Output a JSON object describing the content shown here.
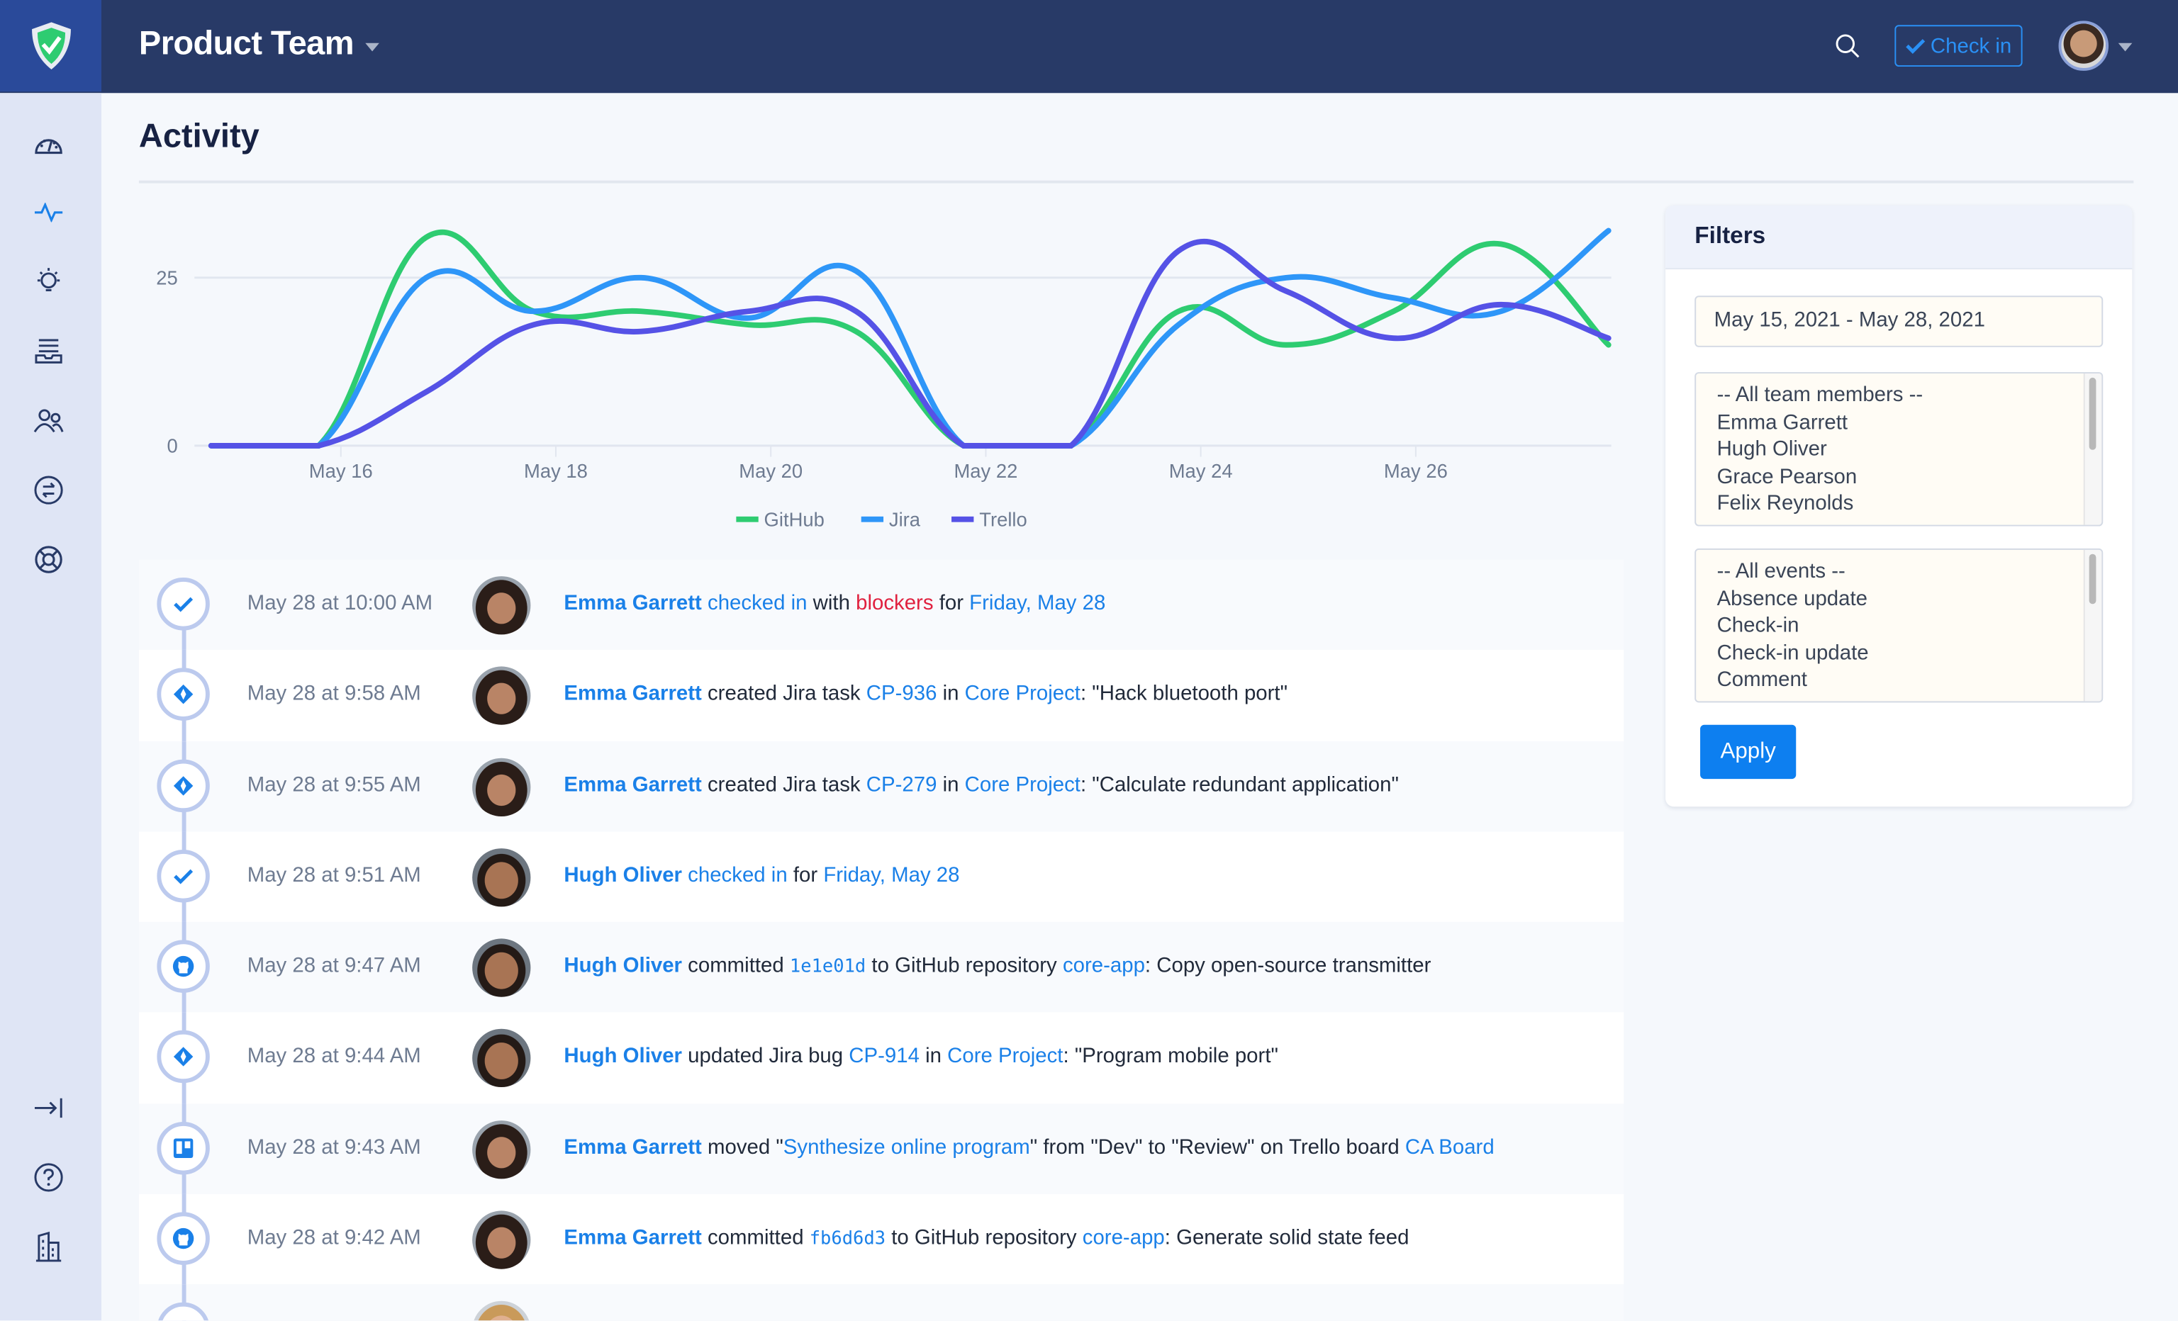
{
  "header": {
    "team_name": "Product Team",
    "check_in_label": "Check in",
    "icons": [
      "shield-check-icon",
      "search-icon",
      "check-icon",
      "user-avatar",
      "chevron-down-icon"
    ]
  },
  "sidebar": {
    "items": [
      {
        "icon": "dashboard-gauge-icon"
      },
      {
        "icon": "activity-pulse-icon",
        "active": true
      },
      {
        "icon": "lightbulb-icon"
      },
      {
        "icon": "inbox-tray-icon"
      },
      {
        "icon": "users-icon"
      },
      {
        "icon": "exchange-arrows-icon"
      },
      {
        "icon": "lifebuoy-icon"
      }
    ],
    "bottom_items": [
      {
        "icon": "collapse-arrow-icon"
      },
      {
        "icon": "help-circle-icon"
      },
      {
        "icon": "building-icon"
      }
    ]
  },
  "page": {
    "title": "Activity"
  },
  "chart_data": {
    "type": "line",
    "x": [
      "May 15",
      "May 16",
      "May 17",
      "May 18",
      "May 19",
      "May 20",
      "May 21",
      "May 22",
      "May 23",
      "May 24",
      "May 25",
      "May 26",
      "May 27",
      "May 28"
    ],
    "tick_labels": [
      "May 16",
      "May 18",
      "May 20",
      "May 22",
      "May 24",
      "May 26"
    ],
    "y_ticks": [
      0,
      25
    ],
    "ylim": [
      0,
      33
    ],
    "grid": true,
    "legend_position": "bottom",
    "series": [
      {
        "name": "GitHub",
        "color": "#2ecc71",
        "values": [
          0,
          0,
          31,
          20,
          20,
          18,
          17,
          0,
          0,
          20,
          15,
          20,
          30,
          15
        ]
      },
      {
        "name": "Jira",
        "color": "#2e96f8",
        "values": [
          0,
          0,
          25,
          20,
          25,
          19,
          26,
          0,
          0,
          18,
          25,
          22,
          20,
          32
        ]
      },
      {
        "name": "Trello",
        "color": "#5552e6",
        "values": [
          0,
          0,
          8,
          18,
          17,
          20,
          20,
          0,
          0,
          29,
          23,
          16,
          21,
          16
        ]
      }
    ]
  },
  "feed": [
    {
      "type": "check-in",
      "icon": "check-icon",
      "time": "May 28 at 10:00 AM",
      "avatar": "emma",
      "segments": [
        {
          "t": "Emma Garrett",
          "s": "user"
        },
        {
          "t": " ",
          "s": "plain"
        },
        {
          "t": "checked in",
          "s": "link"
        },
        {
          "t": " with ",
          "s": "plain"
        },
        {
          "t": "blockers",
          "s": "danger"
        },
        {
          "t": " for ",
          "s": "plain"
        },
        {
          "t": "Friday, May 28",
          "s": "link"
        }
      ]
    },
    {
      "type": "jira",
      "icon": "jira-icon",
      "time": "May 28 at 9:58 AM",
      "avatar": "emma",
      "segments": [
        {
          "t": "Emma Garrett",
          "s": "user"
        },
        {
          "t": " created Jira task ",
          "s": "plain"
        },
        {
          "t": "CP-936",
          "s": "link"
        },
        {
          "t": " in ",
          "s": "plain"
        },
        {
          "t": "Core Project",
          "s": "link"
        },
        {
          "t": ": \"Hack bluetooth port\"",
          "s": "plain"
        }
      ]
    },
    {
      "type": "jira",
      "icon": "jira-icon",
      "time": "May 28 at 9:55 AM",
      "avatar": "emma",
      "segments": [
        {
          "t": "Emma Garrett",
          "s": "user"
        },
        {
          "t": " created Jira task ",
          "s": "plain"
        },
        {
          "t": "CP-279",
          "s": "link"
        },
        {
          "t": " in ",
          "s": "plain"
        },
        {
          "t": "Core Project",
          "s": "link"
        },
        {
          "t": ": \"Calculate redundant application\"",
          "s": "plain"
        }
      ]
    },
    {
      "type": "check-in",
      "icon": "check-icon",
      "time": "May 28 at 9:51 AM",
      "avatar": "hugh",
      "segments": [
        {
          "t": "Hugh Oliver",
          "s": "user"
        },
        {
          "t": " ",
          "s": "plain"
        },
        {
          "t": "checked in",
          "s": "link"
        },
        {
          "t": " for ",
          "s": "plain"
        },
        {
          "t": "Friday, May 28",
          "s": "link"
        }
      ]
    },
    {
      "type": "github",
      "icon": "github-icon",
      "time": "May 28 at 9:47 AM",
      "avatar": "hugh",
      "segments": [
        {
          "t": "Hugh Oliver",
          "s": "user"
        },
        {
          "t": " committed ",
          "s": "plain"
        },
        {
          "t": "1e1e01d",
          "s": "code"
        },
        {
          "t": " to GitHub repository ",
          "s": "plain"
        },
        {
          "t": "core-app",
          "s": "link"
        },
        {
          "t": ": Copy open-source transmitter",
          "s": "plain"
        }
      ]
    },
    {
      "type": "jira",
      "icon": "jira-icon",
      "time": "May 28 at 9:44 AM",
      "avatar": "hugh",
      "segments": [
        {
          "t": "Hugh Oliver",
          "s": "user"
        },
        {
          "t": " updated Jira bug ",
          "s": "plain"
        },
        {
          "t": "CP-914",
          "s": "link"
        },
        {
          "t": " in ",
          "s": "plain"
        },
        {
          "t": "Core Project",
          "s": "link"
        },
        {
          "t": ": \"Program mobile port\"",
          "s": "plain"
        }
      ]
    },
    {
      "type": "trello",
      "icon": "trello-icon",
      "time": "May 28 at 9:43 AM",
      "avatar": "emma",
      "segments": [
        {
          "t": "Emma Garrett",
          "s": "user"
        },
        {
          "t": " moved \"",
          "s": "plain"
        },
        {
          "t": "Synthesize online program",
          "s": "link"
        },
        {
          "t": "\" from \"Dev\" to \"Review\" on Trello board ",
          "s": "plain"
        },
        {
          "t": "CA Board",
          "s": "link"
        }
      ]
    },
    {
      "type": "github",
      "icon": "github-icon",
      "time": "May 28 at 9:42 AM",
      "avatar": "emma",
      "segments": [
        {
          "t": "Emma Garrett",
          "s": "user"
        },
        {
          "t": " committed ",
          "s": "plain"
        },
        {
          "t": "fb6d6d3",
          "s": "code"
        },
        {
          "t": " to GitHub repository ",
          "s": "plain"
        },
        {
          "t": "core-app",
          "s": "link"
        },
        {
          "t": ": Generate solid state feed",
          "s": "plain"
        }
      ]
    },
    {
      "type": "partial",
      "icon": "",
      "time": "",
      "avatar": "grace",
      "segments": []
    }
  ],
  "filters": {
    "title": "Filters",
    "date_range": "May 15, 2021 - May 28, 2021",
    "members": [
      "-- All team members --",
      "Emma Garrett",
      "Hugh Oliver",
      "Grace Pearson",
      "Felix Reynolds"
    ],
    "events": [
      "-- All events --",
      "Absence update",
      "Check-in",
      "Check-in update",
      "Comment"
    ],
    "apply_label": "Apply"
  }
}
